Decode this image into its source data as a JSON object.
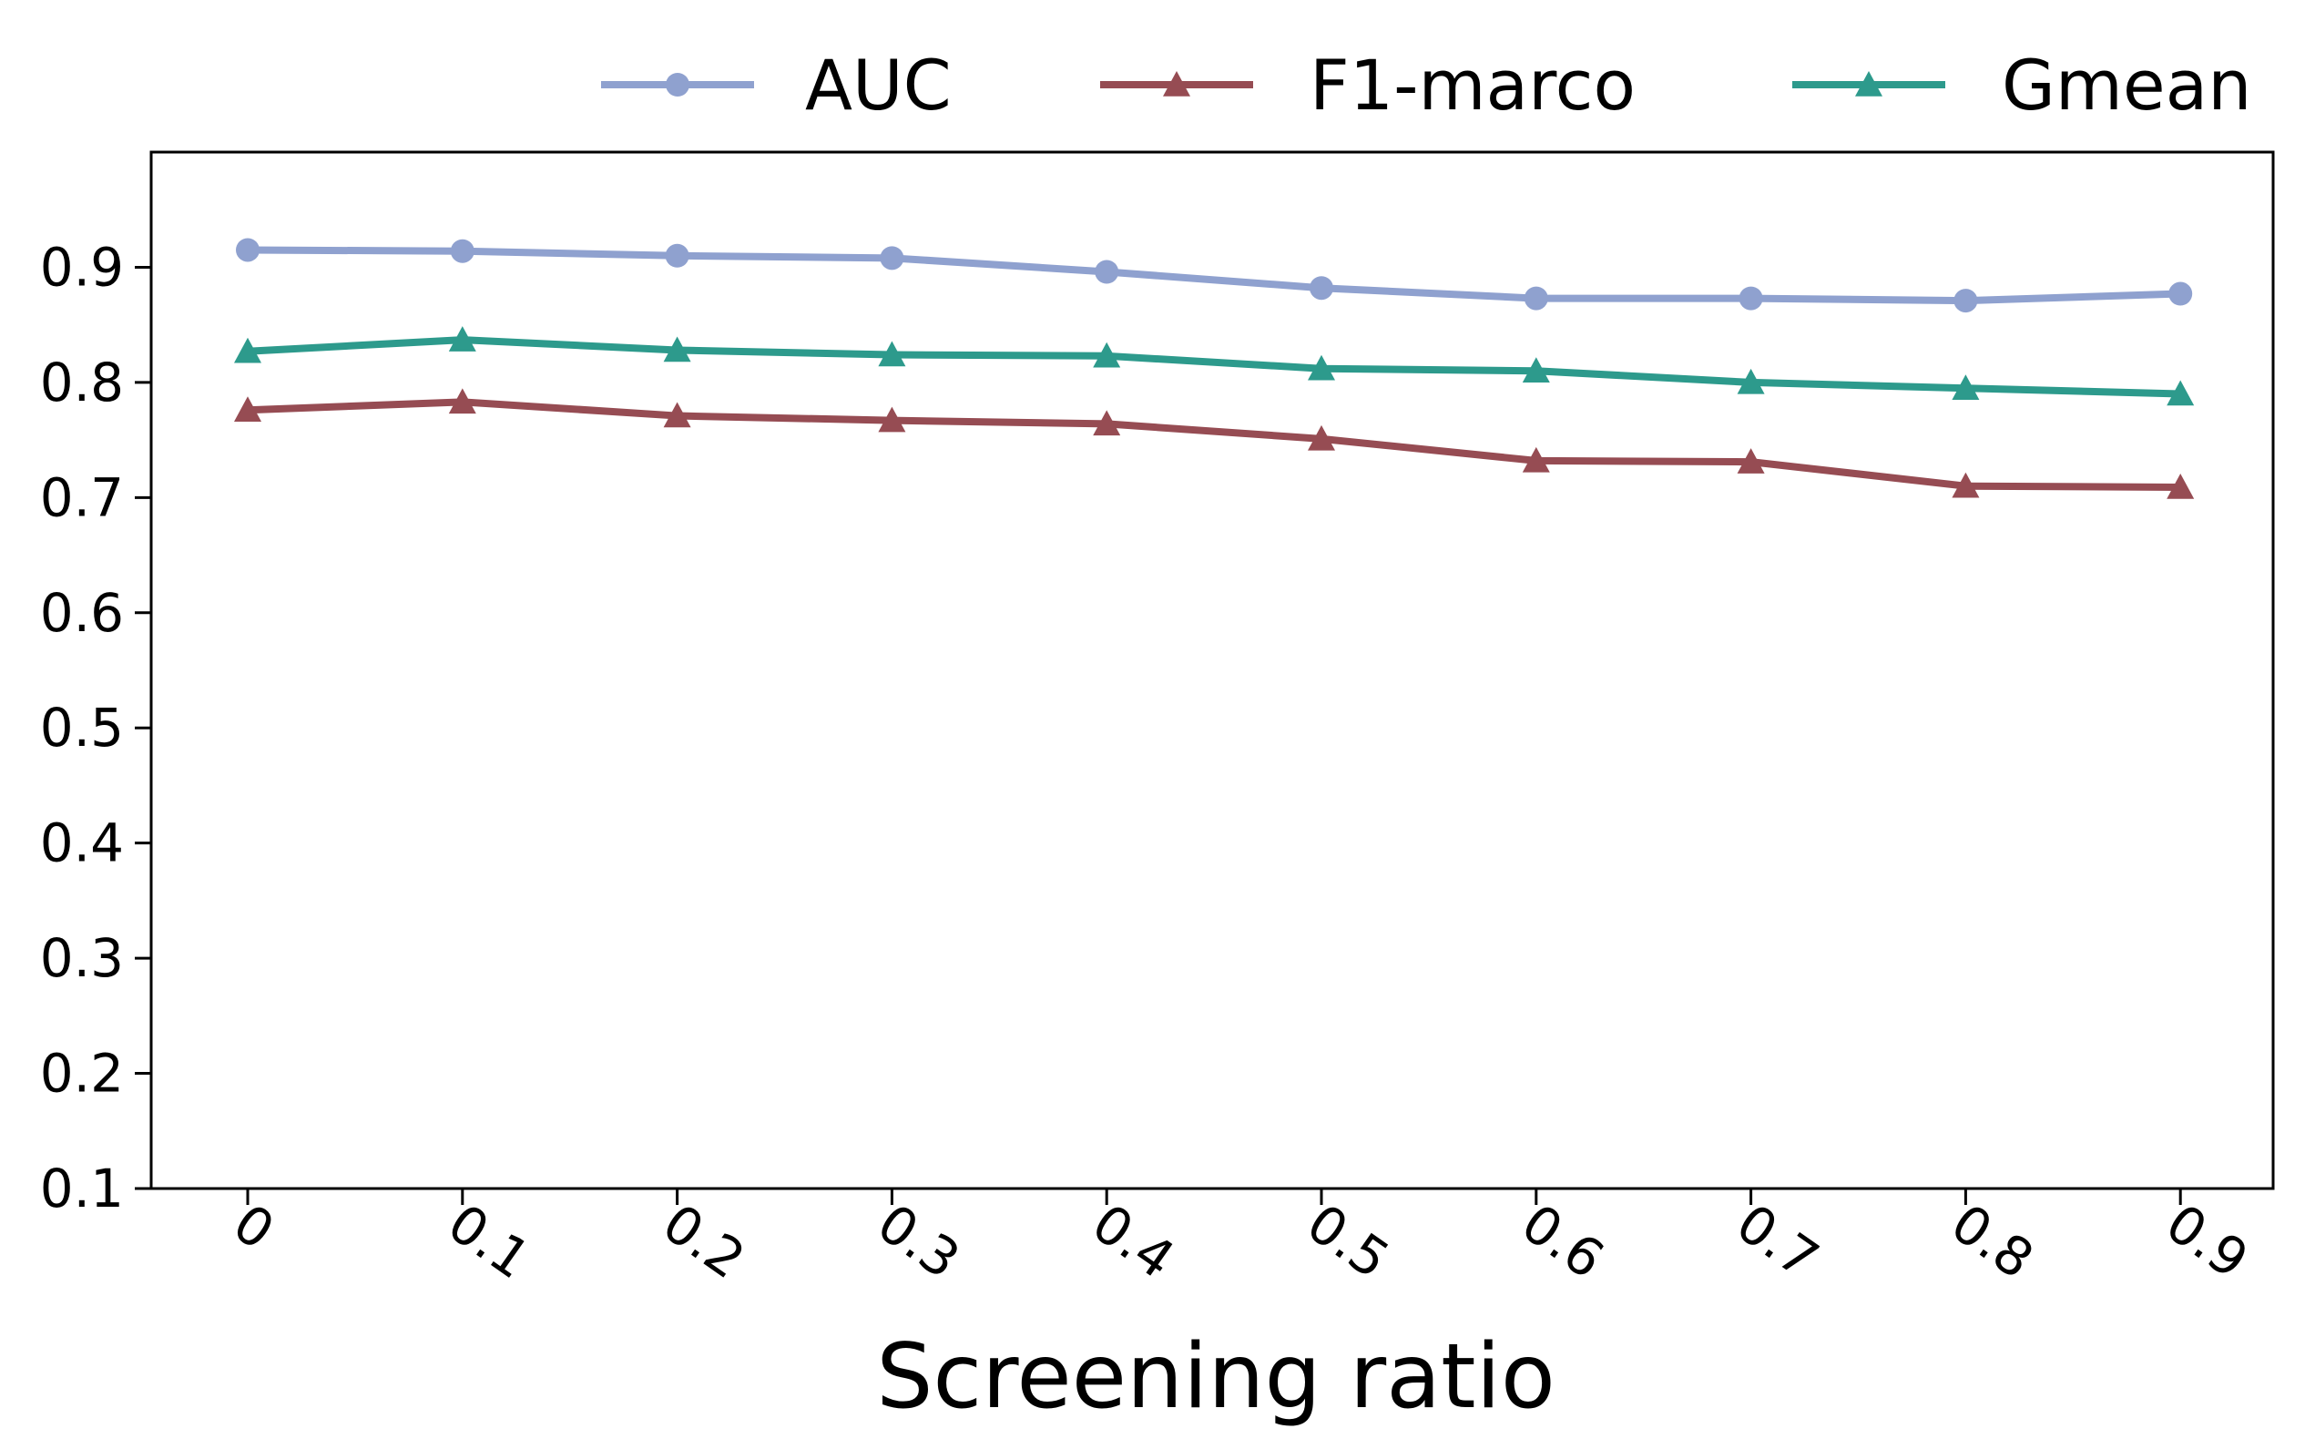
{
  "chart_data": {
    "type": "line",
    "x": [
      0,
      0.1,
      0.2,
      0.3,
      0.4,
      0.5,
      0.6,
      0.7,
      0.8,
      0.9
    ],
    "x_tick_labels": [
      "0",
      "0.1",
      "0.2",
      "0.3",
      "0.4",
      "0.5",
      "0.6",
      "0.7",
      "0.8",
      "0.9"
    ],
    "xlabel": "Screening ratio",
    "ylabel": "",
    "title": "",
    "ylim": [
      0.1,
      1.0
    ],
    "y_ticks": [
      0.1,
      0.2,
      0.3,
      0.4,
      0.5,
      0.6,
      0.7,
      0.8,
      0.9
    ],
    "y_tick_labels": [
      "0.1",
      "0.2",
      "0.3",
      "0.4",
      "0.5",
      "0.6",
      "0.7",
      "0.8",
      "0.9"
    ],
    "grid": false,
    "legend_position": "top, above plot",
    "series": [
      {
        "name": "AUC",
        "color": "#8fa1cf",
        "marker": "circle",
        "values": [
          0.915,
          0.914,
          0.91,
          0.908,
          0.896,
          0.882,
          0.873,
          0.873,
          0.871,
          0.877
        ]
      },
      {
        "name": "F1-marco",
        "color": "#964c53",
        "marker": "triangle",
        "values": [
          0.776,
          0.783,
          0.771,
          0.767,
          0.764,
          0.751,
          0.732,
          0.731,
          0.71,
          0.709
        ]
      },
      {
        "name": "Gmean",
        "color": "#2d9a8c",
        "marker": "triangle",
        "values": [
          0.827,
          0.837,
          0.828,
          0.824,
          0.823,
          0.812,
          0.81,
          0.8,
          0.795,
          0.79
        ]
      }
    ]
  }
}
